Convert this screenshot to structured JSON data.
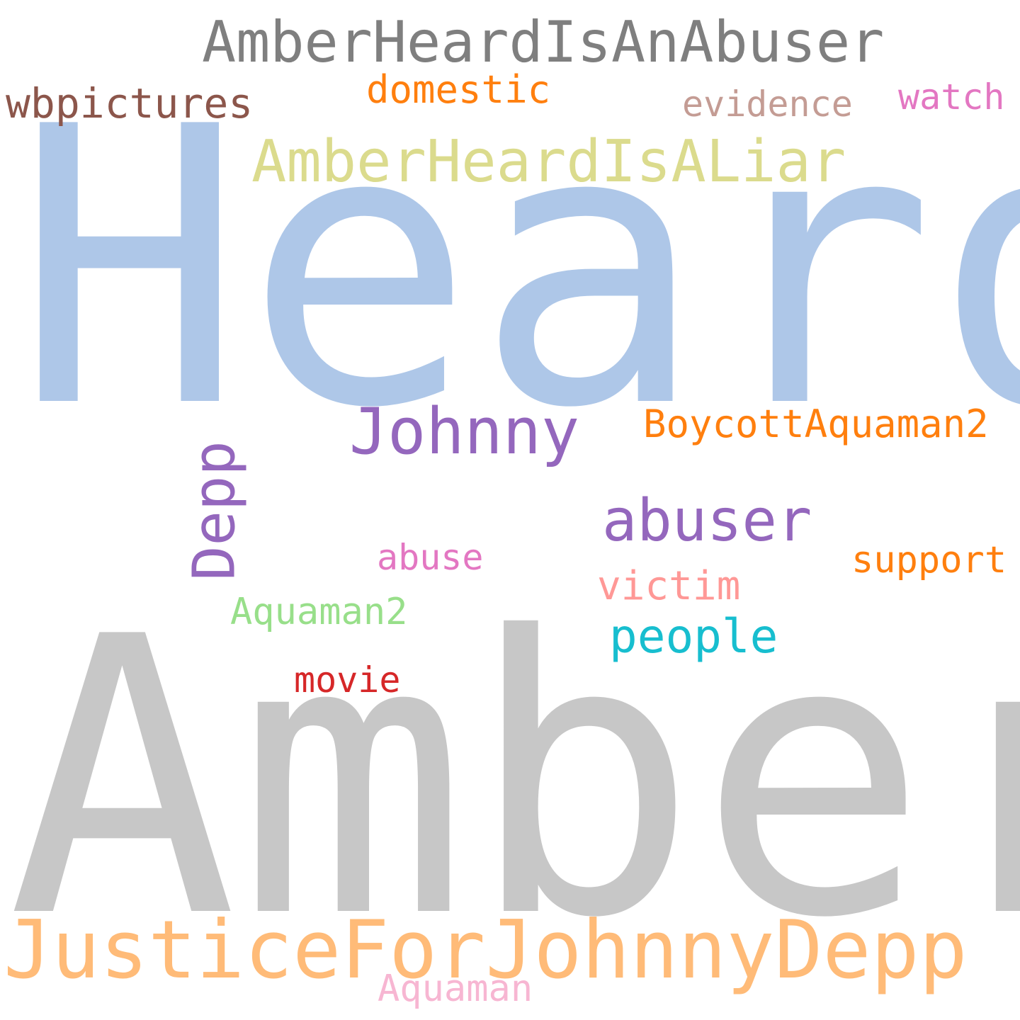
{
  "background": "#ffffff",
  "words": [
    {
      "id": "heard",
      "text": "Heard",
      "color": "#aec7e8"
    },
    {
      "id": "amber",
      "text": "Amber",
      "color": "#c7c7c7"
    },
    {
      "id": "amberheardisanabuser",
      "text": "AmberHeardIsAnAbuser",
      "color": "#7f7f7f"
    },
    {
      "id": "justiceforjohnnydepp",
      "text": "JusticeForJohnnyDepp",
      "color": "#ffbb78"
    },
    {
      "id": "amberheardisaliar",
      "text": "AmberHeardIsALiar",
      "color": "#dbdb8d"
    },
    {
      "id": "johnny",
      "text": "Johnny",
      "color": "#9467bd"
    },
    {
      "id": "abuser",
      "text": "abuser",
      "color": "#9467bd"
    },
    {
      "id": "depp",
      "text": "Depp",
      "color": "#9467bd"
    },
    {
      "id": "boycottaquaman2",
      "text": "BoycottAquaman2",
      "color": "#ff7f0e"
    },
    {
      "id": "people",
      "text": "people",
      "color": "#17becf"
    },
    {
      "id": "wbpictures",
      "text": "wbpictures",
      "color": "#8c564b"
    },
    {
      "id": "domestic",
      "text": "domestic",
      "color": "#ff7f0e"
    },
    {
      "id": "evidence",
      "text": "evidence",
      "color": "#c49c94"
    },
    {
      "id": "watch",
      "text": "watch",
      "color": "#e377c2"
    },
    {
      "id": "support",
      "text": "support",
      "color": "#ff7f0e"
    },
    {
      "id": "abuse",
      "text": "abuse",
      "color": "#e377c2"
    },
    {
      "id": "victim",
      "text": "victim",
      "color": "#ff9896"
    },
    {
      "id": "aquaman2",
      "text": "Aquaman2",
      "color": "#98df8a"
    },
    {
      "id": "movie",
      "text": "movie",
      "color": "#d62728"
    },
    {
      "id": "aquaman",
      "text": "Aquaman",
      "color": "#f7b6d2"
    }
  ]
}
